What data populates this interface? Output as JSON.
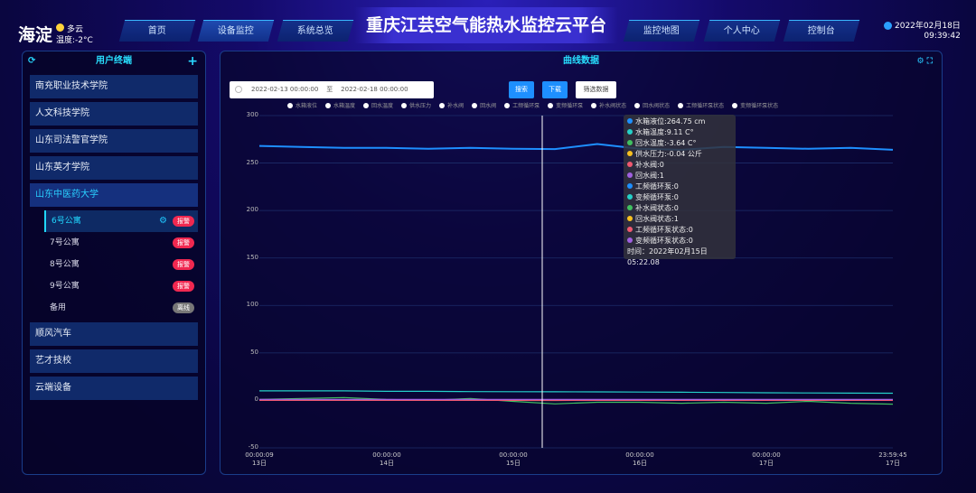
{
  "header": {
    "city": "海淀",
    "weather": "多云",
    "temperature": "温度:-2°C",
    "title": "重庆江芸空气能热水监控云平台",
    "date": "2022年02月18日",
    "time": "09:39:42",
    "nav": [
      {
        "label": "首页"
      },
      {
        "label": "设备监控"
      },
      {
        "label": "系统总览"
      },
      {
        "label": "监控地图"
      },
      {
        "label": "个人中心"
      },
      {
        "label": "控制台"
      }
    ]
  },
  "sidebar": {
    "title": "用户终端",
    "groups": [
      {
        "label": "南充职业技术学院"
      },
      {
        "label": "人文科技学院"
      },
      {
        "label": "山东司法警官学院"
      },
      {
        "label": "山东英才学院"
      },
      {
        "label": "山东中医药大学"
      },
      {
        "label": "顺风汽车"
      },
      {
        "label": "艺才技校"
      },
      {
        "label": "云端设备"
      }
    ],
    "sub_items": [
      {
        "label": "6号公寓",
        "badge": "报警"
      },
      {
        "label": "7号公寓",
        "badge": "报警"
      },
      {
        "label": "8号公寓",
        "badge": "报警"
      },
      {
        "label": "9号公寓",
        "badge": "报警"
      },
      {
        "label": "备用",
        "badge": "离线"
      }
    ]
  },
  "main": {
    "title": "曲线数据",
    "date_start": "2022-02-13 00:00:00",
    "date_sep": "至",
    "date_end": "2022-02-18 00:00:00",
    "search": "搜索",
    "download": "下载",
    "filter": "筛选数据"
  },
  "chart_data": {
    "type": "line",
    "ylim": [
      -50,
      300
    ],
    "yticks": [
      "300",
      "250",
      "200",
      "150",
      "100",
      "50",
      "0",
      "-50"
    ],
    "xticks": [
      [
        "00:00:09",
        "13日"
      ],
      [
        "00:00:00",
        "14日"
      ],
      [
        "00:00:00",
        "15日"
      ],
      [
        "00:00:00",
        "16日"
      ],
      [
        "00:00:00",
        "17日"
      ],
      [
        "23:59:45",
        "17日"
      ]
    ],
    "legend": [
      "水箱液位",
      "水箱温度",
      "回水温度",
      "供水压力",
      "补水阀",
      "回水阀",
      "工频循环泵",
      "变频循环泵",
      "补水阀状态",
      "回水阀状态",
      "工频循环泵状态",
      "变频循环泵状态"
    ],
    "series": [
      {
        "name": "水箱液位",
        "color": "#1e8fff",
        "values": [
          268,
          267,
          266,
          266,
          265,
          266,
          265,
          264.75,
          270,
          265,
          264,
          267,
          266,
          265,
          266,
          264
        ]
      },
      {
        "name": "水箱温度",
        "color": "#25d0c8",
        "values": [
          10,
          10,
          10,
          9.5,
          9.5,
          9.3,
          9.2,
          9.11,
          9,
          8.8,
          8.6,
          8.3,
          8,
          7.8,
          7.6,
          7.5
        ]
      },
      {
        "name": "回水温度",
        "color": "#40c060",
        "values": [
          1,
          2,
          3,
          1,
          0,
          2,
          -1,
          -3.64,
          -2,
          -2,
          -3,
          -2,
          -3,
          -1,
          -3,
          -4
        ]
      },
      {
        "name": "供水压力",
        "color": "#f8c020",
        "values": [
          0,
          0,
          0,
          0,
          0,
          0,
          0,
          -0.04,
          0,
          0,
          0,
          0,
          0,
          0,
          0,
          0
        ]
      },
      {
        "name": "补水阀",
        "color": "#f05870",
        "values": [
          0,
          0,
          0,
          0,
          0,
          0,
          0,
          0,
          0,
          0,
          0,
          0,
          0,
          0,
          0,
          0
        ]
      },
      {
        "name": "回水阀",
        "color": "#a060e0",
        "values": [
          1,
          1,
          1,
          1,
          1,
          1,
          1,
          1,
          1,
          1,
          1,
          1,
          1,
          1,
          1,
          1
        ]
      }
    ],
    "tooltip": {
      "rows": [
        {
          "text": "水箱液位:264.75 cm",
          "color": "#1e8fff"
        },
        {
          "text": "水箱温度:9.11 C°",
          "color": "#25d0c8"
        },
        {
          "text": "回水温度:-3.64 C°",
          "color": "#40c060"
        },
        {
          "text": "供水压力:-0.04 公斤",
          "color": "#f8c020"
        },
        {
          "text": "补水阀:0",
          "color": "#f05870"
        },
        {
          "text": "回水阀:1",
          "color": "#a060e0"
        },
        {
          "text": "工频循环泵:0",
          "color": "#1e8fff"
        },
        {
          "text": "变频循环泵:0",
          "color": "#25d0c8"
        },
        {
          "text": "补水阀状态:0",
          "color": "#40c060"
        },
        {
          "text": "回水阀状态:1",
          "color": "#f8c020"
        },
        {
          "text": "工频循环泵状态:0",
          "color": "#f05870"
        },
        {
          "text": "变频循环泵状态:0",
          "color": "#a060e0"
        }
      ],
      "time": "时间：2022年02月15日 05:22.08"
    }
  }
}
